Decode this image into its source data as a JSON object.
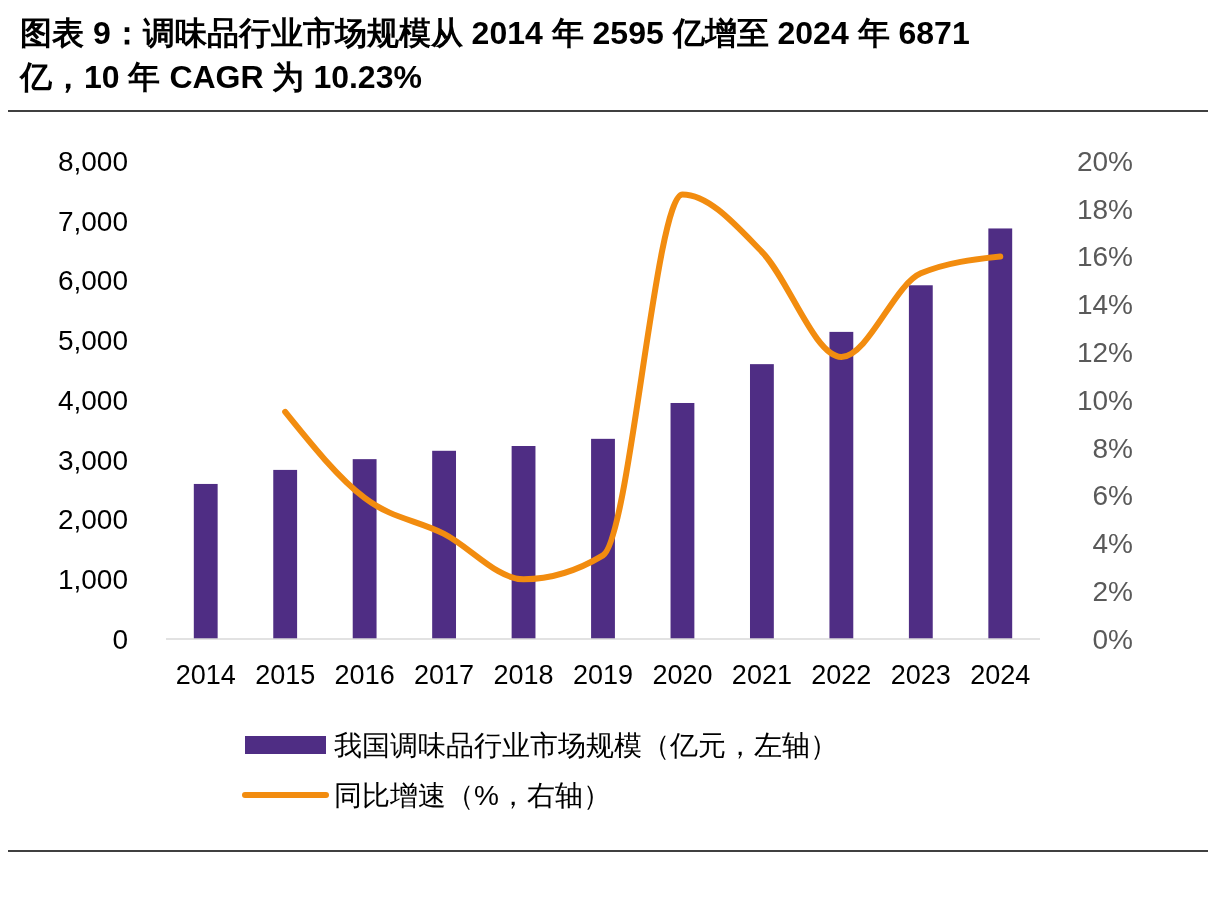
{
  "chart_data": {
    "type": "bar",
    "title": "图表 9：调味品行业市场规模从 2014 年 2595 亿增至 2024 年 6871 亿，10 年 CAGR 为 10.23%",
    "categories": [
      "2014",
      "2015",
      "2016",
      "2017",
      "2018",
      "2019",
      "2020",
      "2021",
      "2022",
      "2023",
      "2024"
    ],
    "series": [
      {
        "name": "我国调味品行业市场规模（亿元，左轴）",
        "color": "#4f2d84",
        "values": [
          2595,
          2830,
          3010,
          3150,
          3230,
          3350,
          3950,
          4600,
          5140,
          5920,
          6871
        ]
      },
      {
        "name": "同比增速（%，右轴）",
        "type": "line",
        "axis": "y2",
        "color": "#f28c0f",
        "values": [
          null,
          9.5,
          5.9,
          4.4,
          2.5,
          3.5,
          18.6,
          16.2,
          11.8,
          15.3,
          16.0
        ]
      }
    ],
    "ylim": [
      0,
      8000
    ],
    "yticks": [
      {
        "value": 0,
        "label": "0"
      },
      {
        "value": 1000,
        "label": "1,000"
      },
      {
        "value": 2000,
        "label": "2,000"
      },
      {
        "value": 3000,
        "label": "3,000"
      },
      {
        "value": 4000,
        "label": "4,000"
      },
      {
        "value": 5000,
        "label": "5,000"
      },
      {
        "value": 6000,
        "label": "6,000"
      },
      {
        "value": 7000,
        "label": "7,000"
      },
      {
        "value": 8000,
        "label": "8,000"
      }
    ],
    "y2lim": [
      0,
      20
    ],
    "y2ticks": [
      {
        "value": 0,
        "label": "0%"
      },
      {
        "value": 2,
        "label": "2%"
      },
      {
        "value": 4,
        "label": "4%"
      },
      {
        "value": 6,
        "label": "6%"
      },
      {
        "value": 8,
        "label": "8%"
      },
      {
        "value": 10,
        "label": "10%"
      },
      {
        "value": 12,
        "label": "12%"
      },
      {
        "value": 14,
        "label": "14%"
      },
      {
        "value": 16,
        "label": "16%"
      },
      {
        "value": 18,
        "label": "18%"
      },
      {
        "value": 20,
        "label": "20%"
      }
    ],
    "grid": false,
    "legend": "bottom"
  }
}
